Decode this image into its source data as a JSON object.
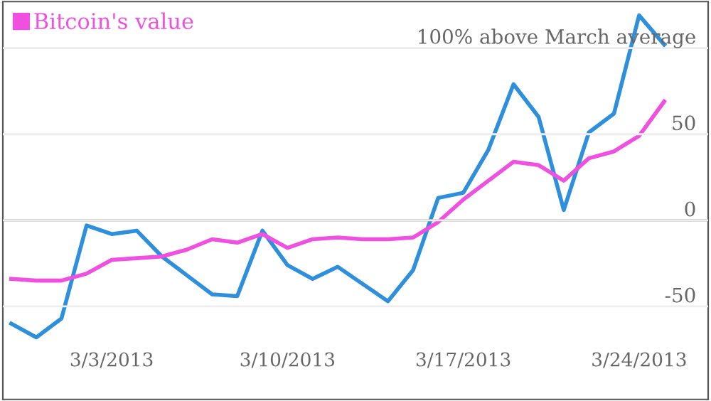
{
  "chart_data": {
    "type": "line",
    "x": [
      "2013-02-27",
      "2013-02-28",
      "2013-03-01",
      "2013-03-02",
      "2013-03-03",
      "2013-03-04",
      "2013-03-05",
      "2013-03-06",
      "2013-03-07",
      "2013-03-08",
      "2013-03-09",
      "2013-03-10",
      "2013-03-11",
      "2013-03-12",
      "2013-03-13",
      "2013-03-14",
      "2013-03-15",
      "2013-03-16",
      "2013-03-17",
      "2013-03-18",
      "2013-03-19",
      "2013-03-20",
      "2013-03-21",
      "2013-03-22",
      "2013-03-23",
      "2013-03-24",
      "2013-03-25"
    ],
    "series": [
      {
        "color": "#2e8fdc",
        "values": [
          -60,
          -68,
          -57,
          -3,
          -8,
          -6,
          -21,
          -32,
          -43,
          -44,
          -6,
          -26,
          -34,
          -27,
          -37,
          -47,
          -29,
          13,
          16,
          41,
          79,
          60,
          6,
          51,
          62,
          119,
          102
        ]
      },
      {
        "name": "Bitcoin's value",
        "color": "#f050e0",
        "values": [
          -34,
          -35,
          -35,
          -31,
          -23,
          -22,
          -21,
          -17,
          -11,
          -13,
          -8,
          -16,
          -11,
          -10,
          -11,
          -11,
          -10,
          -1,
          12,
          23,
          34,
          32,
          23,
          36,
          40,
          49,
          69
        ]
      }
    ],
    "xlim": [
      "2013-02-26T16:00",
      "2013-03-26T18:00"
    ],
    "xticks": [
      {
        "value": "2013-03-03",
        "label": "3/3/2013"
      },
      {
        "value": "2013-03-10",
        "label": "3/10/2013"
      },
      {
        "value": "2013-03-17",
        "label": "3/17/2013"
      },
      {
        "value": "2013-03-24",
        "label": "3/24/2013"
      }
    ],
    "ylim": [
      -104,
      127
    ],
    "yticks": [
      -50,
      0,
      50,
      {
        "value": 100,
        "label": "100% above March average"
      }
    ],
    "ref_lines": [
      {
        "axis": "y",
        "value": 0,
        "color": "#aaaaaa"
      }
    ],
    "grid": "y",
    "legend": "top left",
    "marker": "none",
    "line_style": "solid"
  }
}
